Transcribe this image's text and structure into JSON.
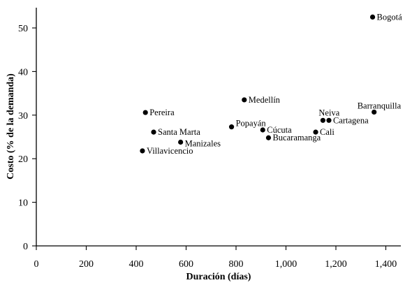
{
  "chart_data": {
    "type": "scatter",
    "title": "",
    "xlabel": "Duración (días)",
    "ylabel": "Costo (% de la demanda)",
    "xlim": [
      0,
      1400
    ],
    "ylim": [
      0,
      55
    ],
    "x_ticks": [
      0,
      200,
      400,
      600,
      800,
      1000,
      1200,
      1400
    ],
    "x_tick_labels": [
      "0",
      "200",
      "400",
      "600",
      "800",
      "1,000",
      "1,200",
      "1,400"
    ],
    "y_ticks": [
      0,
      10,
      20,
      30,
      40,
      50
    ],
    "y_tick_labels": [
      "0",
      "10",
      "20",
      "30",
      "40",
      "50"
    ],
    "grid": false,
    "legend": "none",
    "points": [
      {
        "label": "Bogotá",
        "x": 1347,
        "y": 52.5
      },
      {
        "label": "Medellín",
        "x": 833,
        "y": 33.5
      },
      {
        "label": "Barranquilla",
        "x": 1353,
        "y": 30.7
      },
      {
        "label": "Pereira",
        "x": 437,
        "y": 30.6
      },
      {
        "label": "Neiva",
        "x": 1148,
        "y": 28.8
      },
      {
        "label": "Cartagena",
        "x": 1172,
        "y": 28.8
      },
      {
        "label": "Popayán",
        "x": 782,
        "y": 27.3
      },
      {
        "label": "Cúcuta",
        "x": 907,
        "y": 26.6
      },
      {
        "label": "Santa Marta",
        "x": 470,
        "y": 26.1
      },
      {
        "label": "Cali",
        "x": 1119,
        "y": 26.1
      },
      {
        "label": "Bucaramanga",
        "x": 930,
        "y": 24.8
      },
      {
        "label": "Manizales",
        "x": 578,
        "y": 23.8
      },
      {
        "label": "Villavicencio",
        "x": 425,
        "y": 21.8
      }
    ]
  }
}
